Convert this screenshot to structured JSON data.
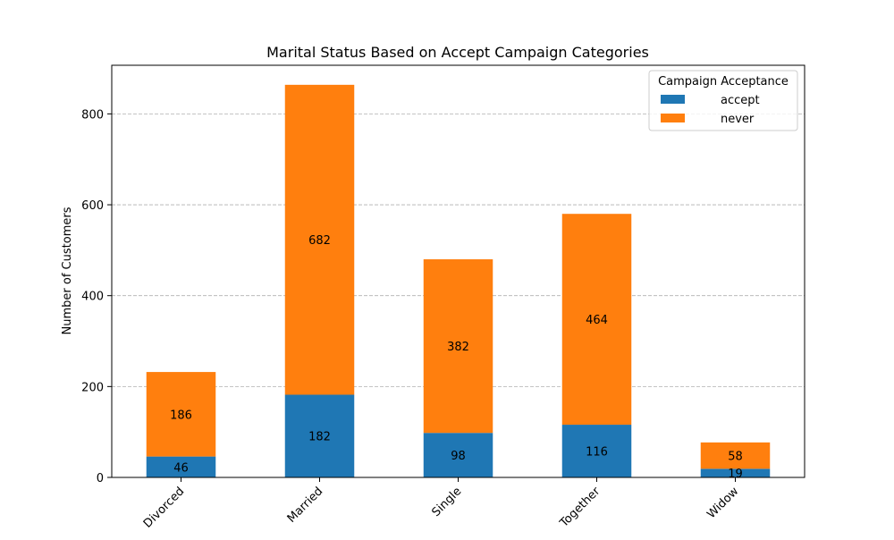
{
  "chart_data": {
    "type": "bar",
    "stacked": true,
    "title": "Marital Status Based on Accept Campaign Categories",
    "xlabel": "",
    "ylabel": "Number of Customers",
    "categories": [
      "Divorced",
      "Married",
      "Single",
      "Together",
      "Widow"
    ],
    "series": [
      {
        "name": "accept",
        "color": "#1f77b4",
        "values": [
          46,
          182,
          98,
          116,
          19
        ]
      },
      {
        "name": "never",
        "color": "#ff7f0e",
        "values": [
          186,
          682,
          382,
          464,
          58
        ]
      }
    ],
    "ylim": [
      0,
      907
    ],
    "yticks": [
      0,
      200,
      400,
      600,
      800
    ],
    "grid": "y-dashed",
    "legend": {
      "title": "Campaign Acceptance",
      "position": "top-right"
    },
    "x_tick_rotation": 45
  }
}
